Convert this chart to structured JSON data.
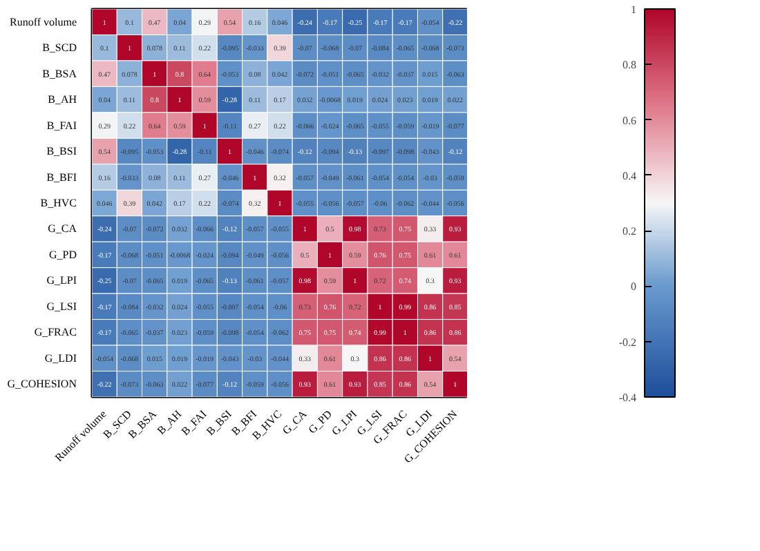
{
  "chart_data": {
    "type": "heatmap",
    "categories": [
      "Runoff volume",
      "B_SCD",
      "B_BSA",
      "B_AH",
      "B_FAI",
      "B_BSI",
      "B_BFI",
      "B_HVC",
      "G_CA",
      "G_PD",
      "G_LPI",
      "G_LSI",
      "G_FRAC",
      "G_LDI",
      "G_COHESION"
    ],
    "y_categories": [
      "Runoff volume",
      "B_SCD",
      "B_BSA",
      "B_AH",
      "B_FAI",
      "B_BSI",
      "B_BFI",
      "B_HVC",
      "G_CA",
      "G_PD",
      "G_LPI",
      "G_LSI",
      "G_FRAC",
      "G_LDI",
      "G_COHESION"
    ],
    "cells": [
      [
        1,
        0.1,
        0.47,
        0.04,
        0.29,
        0.54,
        0.16,
        0.046,
        -0.24,
        -0.17,
        -0.25,
        -0.17,
        -0.17,
        -0.054,
        -0.22
      ],
      [
        0.1,
        1,
        0.078,
        0.11,
        0.22,
        -0.095,
        -0.033,
        0.39,
        -0.07,
        -0.068,
        -0.07,
        -0.084,
        -0.065,
        -0.068,
        -0.073
      ],
      [
        0.47,
        0.078,
        1,
        0.8,
        0.64,
        -0.053,
        0.08,
        0.042,
        -0.072,
        -0.051,
        -0.065,
        -0.032,
        -0.037,
        0.015,
        -0.063
      ],
      [
        0.04,
        0.11,
        0.8,
        1,
        0.59,
        -0.28,
        0.11,
        0.17,
        0.032,
        -0.0068,
        0.019,
        0.024,
        0.023,
        0.019,
        0.022
      ],
      [
        0.29,
        0.22,
        0.64,
        0.59,
        1,
        -0.11,
        0.27,
        0.22,
        -0.066,
        -0.024,
        -0.065,
        -0.055,
        -0.059,
        -0.019,
        -0.077
      ],
      [
        0.54,
        -0.095,
        -0.053,
        -0.28,
        -0.11,
        1,
        -0.046,
        -0.074,
        -0.12,
        -0.094,
        -0.13,
        -0.097,
        -0.098,
        -0.043,
        -0.12
      ],
      [
        0.16,
        -0.033,
        0.08,
        0.11,
        0.27,
        -0.046,
        1,
        0.32,
        -0.057,
        -0.049,
        -0.061,
        -0.054,
        -0.054,
        -0.03,
        -0.059
      ],
      [
        0.046,
        0.39,
        0.042,
        0.17,
        0.22,
        -0.074,
        0.32,
        1,
        -0.055,
        -0.056,
        -0.057,
        -0.06,
        -0.062,
        -0.044,
        -0.056
      ],
      [
        -0.24,
        -0.07,
        -0.072,
        0.032,
        -0.066,
        -0.12,
        -0.057,
        -0.055,
        1,
        0.5,
        0.98,
        0.73,
        0.75,
        0.33,
        0.93
      ],
      [
        -0.17,
        -0.068,
        -0.051,
        -0.0068,
        -0.024,
        -0.094,
        -0.049,
        -0.056,
        0.5,
        1,
        0.59,
        0.76,
        0.75,
        0.61,
        0.61
      ],
      [
        -0.25,
        -0.07,
        -0.065,
        0.019,
        -0.065,
        -0.13,
        -0.061,
        -0.057,
        0.98,
        0.59,
        1,
        0.72,
        0.74,
        0.3,
        0.93
      ],
      [
        -0.17,
        -0.084,
        -0.032,
        0.024,
        -0.055,
        -0.097,
        -0.054,
        -0.06,
        0.73,
        0.76,
        0.72,
        1,
        0.99,
        0.86,
        0.85
      ],
      [
        -0.17,
        -0.065,
        -0.037,
        0.023,
        -0.059,
        -0.098,
        -0.054,
        -0.062,
        0.75,
        0.75,
        0.74,
        0.99,
        1,
        0.86,
        0.86
      ],
      [
        -0.054,
        -0.068,
        0.015,
        0.019,
        -0.019,
        -0.043,
        -0.03,
        -0.044,
        0.33,
        0.61,
        0.3,
        0.86,
        0.86,
        1,
        0.54
      ],
      [
        -0.22,
        -0.073,
        -0.063,
        0.022,
        -0.077,
        -0.12,
        -0.059,
        -0.056,
        0.93,
        0.61,
        0.93,
        0.85,
        0.86,
        0.54,
        1
      ]
    ],
    "data_labels": true,
    "clim": [
      -0.4,
      1
    ],
    "cticks": [
      -0.4,
      -0.2,
      0,
      0.2,
      0.4,
      0.6,
      0.8,
      1
    ]
  }
}
